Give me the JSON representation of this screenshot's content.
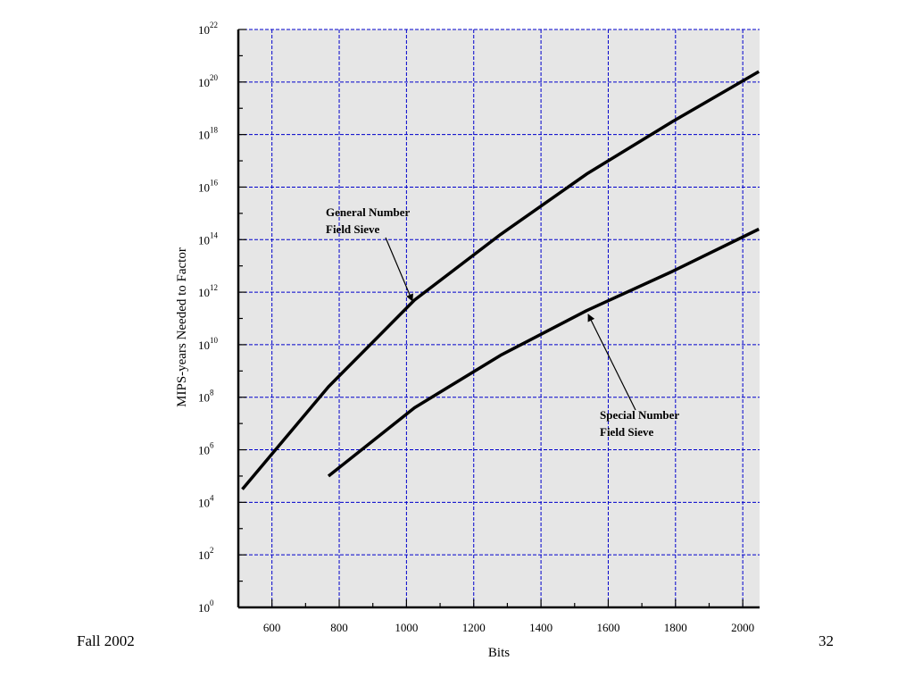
{
  "chart_data": {
    "type": "line",
    "xlabel": "Bits",
    "ylabel": "MIPS-years Needed to Factor",
    "xlim": [
      500,
      2050
    ],
    "ylim_log10": [
      0,
      22
    ],
    "y_scale": "log10",
    "grid": true,
    "x_ticks": [
      600,
      800,
      1000,
      1200,
      1400,
      1600,
      1800,
      2000
    ],
    "y_ticks": [
      {
        "base": "10",
        "exp": "0"
      },
      {
        "base": "10",
        "exp": "2"
      },
      {
        "base": "10",
        "exp": "4"
      },
      {
        "base": "10",
        "exp": "6"
      },
      {
        "base": "10",
        "exp": "8"
      },
      {
        "base": "10",
        "exp": "10"
      },
      {
        "base": "10",
        "exp": "12"
      },
      {
        "base": "10",
        "exp": "14"
      },
      {
        "base": "10",
        "exp": "16"
      },
      {
        "base": "10",
        "exp": "18"
      },
      {
        "base": "10",
        "exp": "20"
      },
      {
        "base": "10",
        "exp": "22"
      }
    ],
    "series": [
      {
        "name": "General Number Field Sieve",
        "x": [
          512,
          768,
          1024,
          1280,
          1536,
          1792,
          2048
        ],
        "y_log10": [
          4.5,
          8.4,
          11.7,
          14.2,
          16.5,
          18.5,
          20.4
        ]
      },
      {
        "name": "Special Number Field Sieve",
        "x": [
          768,
          1024,
          1280,
          1536,
          1792,
          2048
        ],
        "y_log10": [
          5.0,
          7.6,
          9.6,
          11.3,
          12.8,
          14.4
        ]
      }
    ],
    "annotations": [
      {
        "lines": [
          "General Number",
          "Field Sieve"
        ],
        "series": 0,
        "arrow_to_x": 1024
      },
      {
        "lines": [
          "Special Number",
          "Field Sieve"
        ],
        "series": 1,
        "arrow_to_x": 1536
      }
    ],
    "colors": {
      "plot_background": "#e6e6e6",
      "grid": "#0000cc",
      "line": "#000000"
    }
  },
  "footer": {
    "left": "Fall 2002",
    "right": "32"
  }
}
